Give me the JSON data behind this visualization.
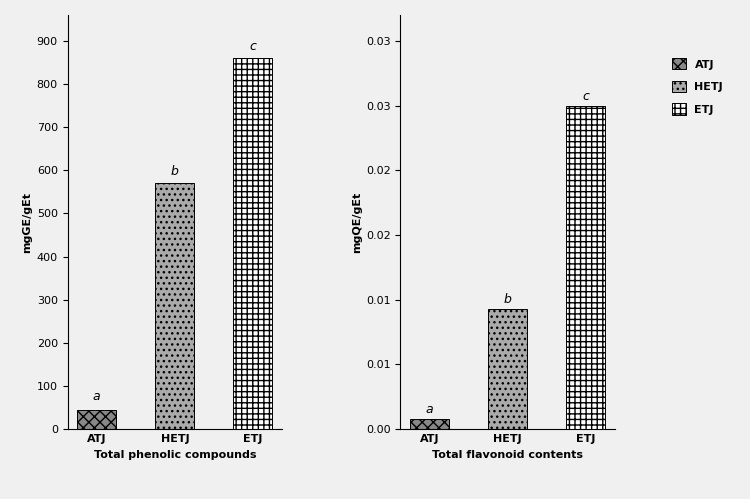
{
  "categories": [
    "ATJ",
    "HETJ",
    "ETJ"
  ],
  "phenolic_values": [
    45,
    570,
    860
  ],
  "flavonoid_values": [
    0.0008,
    0.0093,
    0.025
  ],
  "phenolic_labels": [
    "a",
    "b",
    "c"
  ],
  "flavonoid_labels": [
    "a",
    "b",
    "c"
  ],
  "phenolic_ylabel": "mgGE/gEt",
  "flavonoid_ylabel": "mgQE/gEt",
  "phenolic_xlabel": "Total phenolic compounds",
  "flavonoid_xlabel": "Total flavonoid contents",
  "phenolic_ylim": [
    0,
    960
  ],
  "flavonoid_ylim": [
    0,
    0.032
  ],
  "phenolic_yticks": [
    0,
    100,
    200,
    300,
    400,
    500,
    600,
    700,
    800,
    900
  ],
  "flavonoid_yticks": [
    0.0,
    0.01,
    0.02,
    0.03
  ],
  "flavonoid_ytick_labels": [
    "0.00",
    "0.01",
    "0.02",
    "0.03"
  ],
  "legend_labels": [
    "ATJ",
    "HETJ",
    "ETJ"
  ],
  "bar_width": 0.5,
  "background_color": "#f0f0f0",
  "label_fontsize": 8,
  "axis_label_fontsize": 8,
  "tick_fontsize": 8,
  "annotation_fontsize": 9,
  "xlabel_fontsize": 8,
  "atj_facecolor": "#888888",
  "hetj_facecolor": "#aaaaaa",
  "etj_facecolor": "#ffffff",
  "atj_hatch": "xxx",
  "hetj_hatch": "...",
  "etj_hatch": "|||---",
  "phenolic_label_offsets": [
    15,
    12,
    12
  ],
  "flavonoid_label_offsets": [
    0.0002,
    0.0002,
    0.0002
  ]
}
